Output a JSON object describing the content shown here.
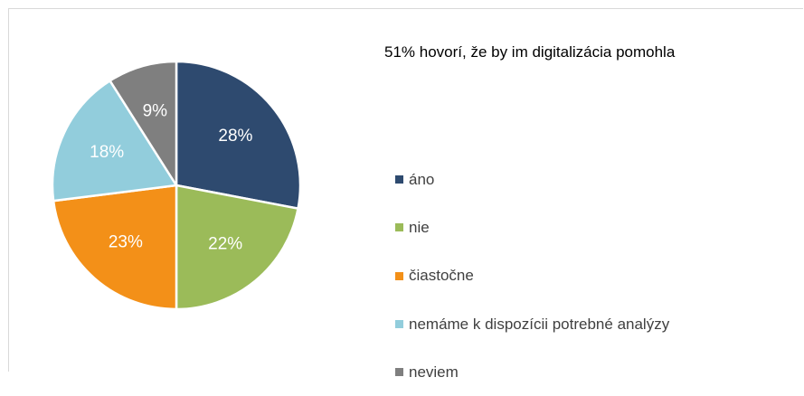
{
  "chart_data": {
    "type": "pie",
    "title": "51% hovorí, že by im digitalizácia pomohla",
    "categories": [
      "áno",
      "nie",
      "čiastočne",
      "nemáme k dispozícii potrebné analýzy",
      "neviem"
    ],
    "values": [
      28,
      22,
      23,
      18,
      9
    ],
    "value_labels": [
      "28%",
      "22%",
      "23%",
      "18%",
      "9%"
    ],
    "colors": [
      "#2e4a6f",
      "#9bbb59",
      "#f39018",
      "#92cddc",
      "#7f7f7f"
    ],
    "legend": "right"
  }
}
